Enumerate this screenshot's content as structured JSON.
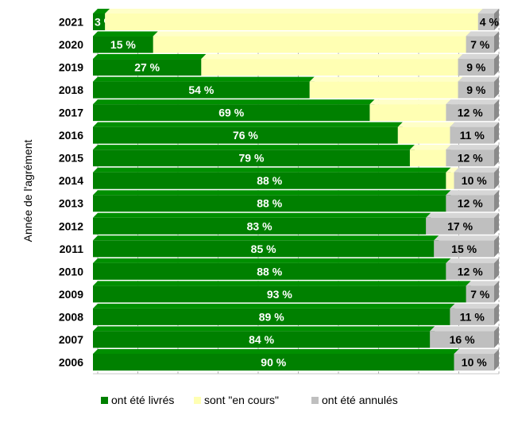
{
  "chart_data": {
    "type": "bar",
    "orientation": "horizontal",
    "stacked": true,
    "ylabel": "Année de l'agrément",
    "categories": [
      "2021",
      "2020",
      "2019",
      "2018",
      "2017",
      "2016",
      "2015",
      "2014",
      "2013",
      "2012",
      "2011",
      "2010",
      "2009",
      "2008",
      "2007",
      "2006"
    ],
    "series": [
      {
        "name": "ont été livrés",
        "color": "#008000",
        "label_color": "#ffffff",
        "values": [
          3,
          15,
          27,
          54,
          69,
          76,
          79,
          88,
          88,
          83,
          85,
          88,
          93,
          89,
          84,
          90
        ],
        "labels": [
          "3 %",
          "15 %",
          "27 %",
          "54 %",
          "69 %",
          "76 %",
          "79 %",
          "88 %",
          "88 %",
          "83 %",
          "85 %",
          "88 %",
          "93 %",
          "89 %",
          "84 %",
          "90 %"
        ]
      },
      {
        "name": "sont \"en cours\"",
        "color": "#ffffb3",
        "label_color": "#000000",
        "values": [
          93,
          78,
          64,
          37,
          19,
          13,
          9,
          2,
          0,
          0,
          0,
          0,
          0,
          0,
          0,
          0
        ],
        "labels": [
          "",
          "",
          "",
          "",
          "",
          "",
          "",
          "",
          "",
          "",
          "",
          "",
          "",
          "",
          "",
          ""
        ]
      },
      {
        "name": "ont été annulés",
        "color": "#bfbfbf",
        "label_color": "#000000",
        "values": [
          4,
          7,
          9,
          9,
          12,
          11,
          12,
          10,
          12,
          17,
          15,
          12,
          7,
          11,
          16,
          10
        ],
        "labels": [
          "4 %",
          "7 %",
          "9 %",
          "9 %",
          "12 %",
          "11 %",
          "12 %",
          "10 %",
          "12 %",
          "17 %",
          "15 %",
          "12 %",
          "7 %",
          "11 %",
          "16 %",
          "10 %"
        ]
      }
    ],
    "xlim": [
      0,
      100
    ],
    "grid": "vertical dashed",
    "legend": "bottom"
  }
}
